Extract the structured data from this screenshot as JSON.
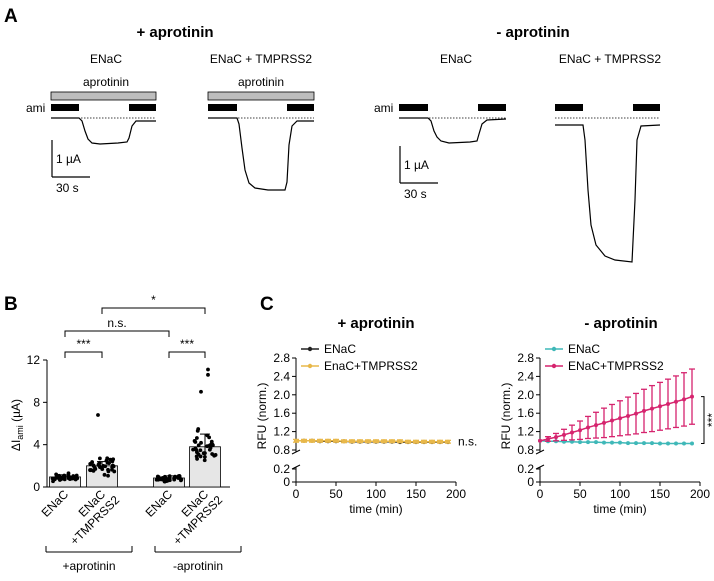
{
  "panels": {
    "a": "A",
    "b": "B",
    "c": "C"
  },
  "panel_a": {
    "left_title": "+ aprotinin",
    "right_title": "- aprotinin",
    "traces": [
      {
        "label": "ENaC",
        "bar_label": "aprotinin"
      },
      {
        "label": "ENaC + TMPRSS2",
        "bar_label": "aprotinin"
      },
      {
        "label": "ENaC",
        "bar_label": ""
      },
      {
        "label": "ENaC + TMPRSS2",
        "bar_label": ""
      }
    ],
    "ami_label": "ami",
    "scale_current": "1 µA",
    "scale_time": "30 s"
  },
  "chart_data": [
    {
      "type": "bar",
      "panel": "B",
      "categories": [
        "ENaC",
        "ENaC +TMPRSS2",
        "ENaC",
        "ENaC +TMPRSS2"
      ],
      "values": [
        0.95,
        2.0,
        0.85,
        3.8
      ],
      "errors": [
        0.2,
        0.4,
        0.2,
        1.2
      ],
      "ylabel_main": "ΔI",
      "ylabel_sub": "ami",
      "ylabel_unit": " (µA)",
      "ylim": [
        0,
        12
      ],
      "yticks": [
        "0",
        "4",
        "8",
        "12"
      ],
      "groups": [
        "+aprotinin",
        "-aprotinin"
      ],
      "significance": [
        {
          "pair": [
            0,
            1
          ],
          "label": "***"
        },
        {
          "pair": [
            2,
            3
          ],
          "label": "***"
        },
        {
          "pair": [
            0,
            2
          ],
          "label": "n.s."
        },
        {
          "pair": [
            1,
            3
          ],
          "label": "*"
        }
      ]
    },
    {
      "type": "line",
      "panel": "C",
      "title": "+ aprotinin",
      "xlabel": "time (min)",
      "ylabel": "RFU (norm.)",
      "xlim": [
        0,
        200
      ],
      "xticks": [
        "0",
        "50",
        "100",
        "150",
        "200"
      ],
      "yticks_upper": [
        "0.8",
        "1.2",
        "1.6",
        "2.0",
        "2.4",
        "2.8"
      ],
      "yticks_lower": [
        "0",
        "0.2"
      ],
      "legend": "top-left",
      "annotation": "n.s.",
      "series": [
        {
          "name": "ENaC",
          "color": "#222222",
          "x": [
            0,
            10,
            20,
            30,
            40,
            50,
            60,
            70,
            80,
            90,
            100,
            110,
            120,
            130,
            140,
            150,
            160,
            170,
            180,
            190
          ],
          "y": [
            1.0,
            1.0,
            1.0,
            0.99,
            0.99,
            0.99,
            0.99,
            0.98,
            0.98,
            0.98,
            0.98,
            0.98,
            0.98,
            0.97,
            0.97,
            0.97,
            0.97,
            0.97,
            0.97,
            0.97
          ],
          "err": [
            0.02,
            0.02,
            0.02,
            0.02,
            0.02,
            0.02,
            0.02,
            0.02,
            0.02,
            0.02,
            0.02,
            0.02,
            0.02,
            0.02,
            0.02,
            0.02,
            0.02,
            0.02,
            0.02,
            0.02
          ]
        },
        {
          "name": "EnaC+TMPRSS2",
          "color": "#e8b84a",
          "x": [
            0,
            10,
            20,
            30,
            40,
            50,
            60,
            70,
            80,
            90,
            100,
            110,
            120,
            130,
            140,
            150,
            160,
            170,
            180,
            190
          ],
          "y": [
            1.0,
            1.0,
            1.0,
            1.0,
            1.0,
            1.0,
            0.99,
            0.99,
            0.99,
            0.99,
            0.99,
            0.99,
            0.99,
            0.99,
            0.98,
            0.98,
            0.98,
            0.98,
            0.98,
            0.98
          ],
          "err": [
            0.03,
            0.03,
            0.03,
            0.03,
            0.03,
            0.03,
            0.03,
            0.03,
            0.03,
            0.03,
            0.03,
            0.03,
            0.03,
            0.03,
            0.03,
            0.03,
            0.03,
            0.03,
            0.03,
            0.03
          ]
        }
      ]
    },
    {
      "type": "line",
      "panel": "C",
      "title": "- aprotinin",
      "xlabel": "time (min)",
      "ylabel": "RFU (norm.)",
      "xlim": [
        0,
        200
      ],
      "xticks": [
        "0",
        "50",
        "100",
        "150",
        "200"
      ],
      "yticks_upper": [
        "0.8",
        "1.2",
        "1.6",
        "2.0",
        "2.4",
        "2.8"
      ],
      "yticks_lower": [
        "0",
        "0.2"
      ],
      "legend": "top-left",
      "annotation": "***",
      "series": [
        {
          "name": "ENaC",
          "color": "#3fb8b8",
          "x": [
            0,
            10,
            20,
            30,
            40,
            50,
            60,
            70,
            80,
            90,
            100,
            110,
            120,
            130,
            140,
            150,
            160,
            170,
            180,
            190
          ],
          "y": [
            1.0,
            0.99,
            0.99,
            0.98,
            0.98,
            0.97,
            0.97,
            0.97,
            0.96,
            0.96,
            0.96,
            0.95,
            0.95,
            0.95,
            0.95,
            0.94,
            0.94,
            0.94,
            0.94,
            0.94
          ],
          "err": [
            0.01,
            0.01,
            0.01,
            0.01,
            0.01,
            0.01,
            0.01,
            0.01,
            0.01,
            0.01,
            0.01,
            0.01,
            0.01,
            0.01,
            0.01,
            0.01,
            0.01,
            0.01,
            0.01,
            0.01
          ]
        },
        {
          "name": "ENaC+TMPRSS2",
          "color": "#d6246e",
          "x": [
            0,
            10,
            20,
            30,
            40,
            50,
            60,
            70,
            80,
            90,
            100,
            110,
            120,
            130,
            140,
            150,
            160,
            170,
            180,
            190
          ],
          "y": [
            1.0,
            1.04,
            1.08,
            1.13,
            1.18,
            1.23,
            1.29,
            1.34,
            1.39,
            1.44,
            1.49,
            1.54,
            1.59,
            1.65,
            1.7,
            1.75,
            1.8,
            1.85,
            1.9,
            1.96
          ],
          "err": [
            0.02,
            0.05,
            0.08,
            0.12,
            0.16,
            0.2,
            0.24,
            0.28,
            0.32,
            0.35,
            0.38,
            0.41,
            0.44,
            0.47,
            0.5,
            0.52,
            0.54,
            0.56,
            0.58,
            0.6
          ]
        }
      ]
    }
  ]
}
